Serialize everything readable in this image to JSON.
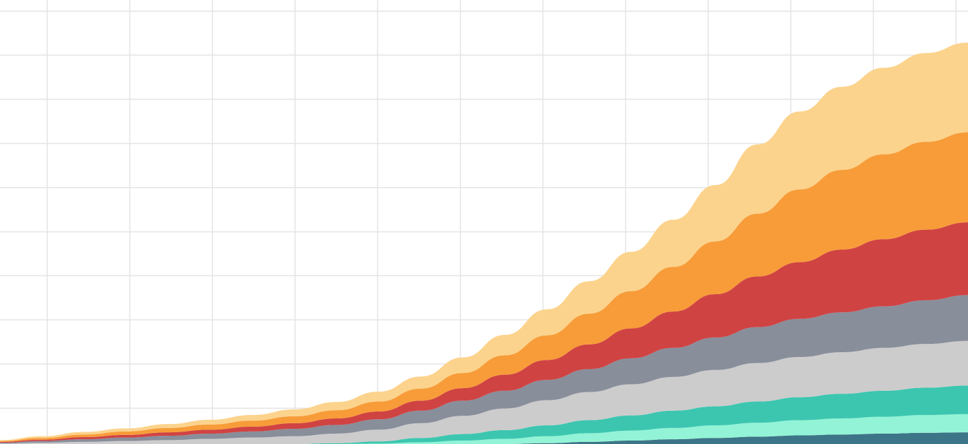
{
  "chart_data": {
    "type": "area",
    "stacked": true,
    "title": "",
    "xlabel": "",
    "ylabel": "",
    "grid": true,
    "legend": "none",
    "x": [
      0,
      1,
      2,
      3,
      4,
      5,
      6,
      7,
      8,
      9,
      10,
      11,
      12,
      13,
      14,
      15,
      16,
      17,
      18,
      19,
      20,
      21,
      22,
      23
    ],
    "xlim": [
      0,
      23
    ],
    "ylim": [
      0,
      10
    ],
    "series": [
      {
        "color": "#3d7588",
        "values": [
          0,
          0,
          0,
          0,
          0,
          0,
          0,
          0,
          0,
          0,
          0,
          0,
          0,
          0.02,
          0.05,
          0.08,
          0.11,
          0.14,
          0.17,
          0.2,
          0.22,
          0.24,
          0.26,
          0.27
        ]
      },
      {
        "color": "#93f3d6",
        "values": [
          0,
          0,
          0,
          0,
          0,
          0,
          0,
          0,
          0,
          0.01,
          0.04,
          0.08,
          0.12,
          0.16,
          0.2,
          0.23,
          0.26,
          0.29,
          0.32,
          0.35,
          0.37,
          0.39,
          0.41,
          0.42
        ]
      },
      {
        "color": "#3cc6b0",
        "values": [
          0,
          0,
          0,
          0,
          0,
          0,
          0,
          0,
          0.02,
          0.05,
          0.1,
          0.15,
          0.2,
          0.25,
          0.3,
          0.35,
          0.4,
          0.44,
          0.49,
          0.53,
          0.57,
          0.6,
          0.63,
          0.66
        ]
      },
      {
        "color": "#cccccc",
        "values": [
          0.01,
          0.03,
          0.05,
          0.07,
          0.09,
          0.12,
          0.15,
          0.18,
          0.22,
          0.27,
          0.34,
          0.42,
          0.5,
          0.58,
          0.65,
          0.72,
          0.78,
          0.84,
          0.89,
          0.93,
          0.96,
          0.99,
          1.01,
          1.03
        ]
      },
      {
        "color": "#898e9b",
        "values": [
          0.02,
          0.04,
          0.06,
          0.08,
          0.1,
          0.12,
          0.14,
          0.17,
          0.2,
          0.24,
          0.29,
          0.35,
          0.41,
          0.47,
          0.53,
          0.6,
          0.67,
          0.75,
          0.83,
          0.88,
          0.92,
          0.96,
          1.01,
          1.06
        ]
      },
      {
        "color": "#d04343",
        "values": [
          0.02,
          0.03,
          0.05,
          0.06,
          0.08,
          0.09,
          0.11,
          0.13,
          0.15,
          0.18,
          0.23,
          0.29,
          0.37,
          0.46,
          0.57,
          0.69,
          0.84,
          1.0,
          1.17,
          1.31,
          1.45,
          1.55,
          1.63,
          1.68
        ]
      },
      {
        "color": "#f79c39",
        "values": [
          0.02,
          0.04,
          0.06,
          0.08,
          0.1,
          0.12,
          0.14,
          0.16,
          0.19,
          0.23,
          0.28,
          0.35,
          0.45,
          0.57,
          0.71,
          0.86,
          1.03,
          1.22,
          1.45,
          1.68,
          1.84,
          1.96,
          2.03,
          2.08
        ]
      },
      {
        "color": "#fcd38c",
        "values": [
          0.02,
          0.04,
          0.06,
          0.07,
          0.09,
          0.11,
          0.13,
          0.16,
          0.19,
          0.23,
          0.28,
          0.36,
          0.47,
          0.6,
          0.75,
          0.91,
          1.09,
          1.3,
          1.6,
          1.8,
          1.92,
          2.0,
          2.05,
          2.07
        ]
      }
    ]
  }
}
